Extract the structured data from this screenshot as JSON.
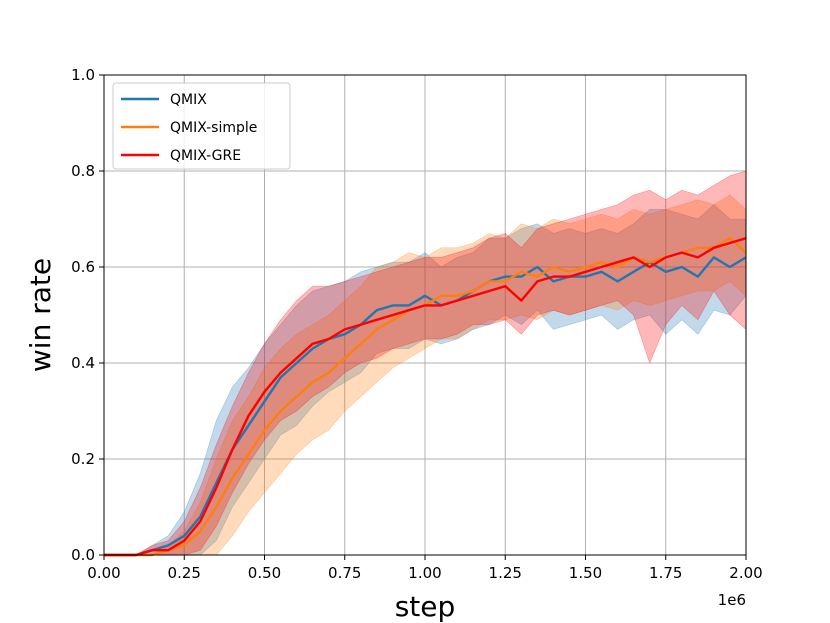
{
  "chart_data": {
    "type": "line",
    "title": "",
    "xlabel": "step",
    "ylabel": "win rate",
    "x_exponent_label": "1e6",
    "xlim": [
      0,
      2.0
    ],
    "ylim": [
      0,
      1.0
    ],
    "x_ticks": [
      0,
      0.25,
      0.5,
      0.75,
      1.0,
      1.25,
      1.5,
      1.75,
      2.0
    ],
    "x_tick_labels": [
      "0.00",
      "0.25",
      "0.50",
      "0.75",
      "1.00",
      "1.25",
      "1.50",
      "1.75",
      "2.00"
    ],
    "y_ticks": [
      0,
      0.2,
      0.4,
      0.6,
      0.8,
      1.0
    ],
    "y_tick_labels": [
      "0.0",
      "0.2",
      "0.4",
      "0.6",
      "0.8",
      "1.0"
    ],
    "grid": true,
    "legend_position": "upper-left",
    "x": [
      0,
      0.05,
      0.1,
      0.15,
      0.2,
      0.25,
      0.3,
      0.35,
      0.4,
      0.45,
      0.5,
      0.55,
      0.6,
      0.65,
      0.7,
      0.75,
      0.8,
      0.85,
      0.9,
      0.95,
      1.0,
      1.05,
      1.1,
      1.15,
      1.2,
      1.25,
      1.3,
      1.35,
      1.4,
      1.45,
      1.5,
      1.55,
      1.6,
      1.65,
      1.7,
      1.75,
      1.8,
      1.85,
      1.9,
      1.95,
      2.0
    ],
    "series": [
      {
        "name": "QMIX",
        "color": "#1f77b4",
        "values": [
          0.0,
          0.0,
          0.0,
          0.01,
          0.02,
          0.04,
          0.08,
          0.15,
          0.22,
          0.27,
          0.32,
          0.37,
          0.4,
          0.43,
          0.45,
          0.46,
          0.48,
          0.51,
          0.52,
          0.52,
          0.54,
          0.52,
          0.53,
          0.55,
          0.57,
          0.58,
          0.58,
          0.6,
          0.57,
          0.58,
          0.58,
          0.59,
          0.57,
          0.59,
          0.61,
          0.59,
          0.6,
          0.58,
          0.62,
          0.6,
          0.62
        ],
        "lower": [
          0.0,
          0.0,
          0.0,
          0.0,
          0.0,
          0.0,
          0.0,
          0.03,
          0.1,
          0.15,
          0.2,
          0.25,
          0.27,
          0.31,
          0.34,
          0.36,
          0.38,
          0.42,
          0.43,
          0.43,
          0.45,
          0.44,
          0.45,
          0.47,
          0.48,
          0.5,
          0.48,
          0.51,
          0.47,
          0.48,
          0.49,
          0.5,
          0.47,
          0.49,
          0.5,
          0.46,
          0.49,
          0.46,
          0.51,
          0.5,
          0.54
        ],
        "upper": [
          0.0,
          0.0,
          0.0,
          0.02,
          0.04,
          0.09,
          0.17,
          0.28,
          0.35,
          0.39,
          0.44,
          0.48,
          0.52,
          0.55,
          0.56,
          0.57,
          0.59,
          0.6,
          0.61,
          0.61,
          0.63,
          0.6,
          0.62,
          0.63,
          0.66,
          0.66,
          0.68,
          0.69,
          0.67,
          0.68,
          0.67,
          0.68,
          0.67,
          0.69,
          0.72,
          0.72,
          0.71,
          0.7,
          0.73,
          0.7,
          0.7
        ]
      },
      {
        "name": "QMIX-simple",
        "color": "#ff7f0e",
        "values": [
          0.0,
          0.0,
          0.0,
          0.0,
          0.01,
          0.02,
          0.05,
          0.1,
          0.16,
          0.21,
          0.26,
          0.3,
          0.33,
          0.36,
          0.38,
          0.41,
          0.44,
          0.47,
          0.49,
          0.51,
          0.52,
          0.54,
          0.54,
          0.55,
          0.57,
          0.57,
          0.59,
          0.58,
          0.6,
          0.59,
          0.6,
          0.61,
          0.6,
          0.62,
          0.61,
          0.62,
          0.63,
          0.64,
          0.64,
          0.66,
          0.63
        ],
        "lower": [
          0.0,
          0.0,
          0.0,
          0.0,
          0.0,
          0.0,
          0.0,
          0.0,
          0.04,
          0.09,
          0.13,
          0.17,
          0.21,
          0.24,
          0.26,
          0.3,
          0.33,
          0.36,
          0.39,
          0.41,
          0.43,
          0.45,
          0.45,
          0.47,
          0.49,
          0.49,
          0.5,
          0.49,
          0.51,
          0.5,
          0.51,
          0.52,
          0.51,
          0.53,
          0.52,
          0.53,
          0.54,
          0.55,
          0.55,
          0.57,
          0.54
        ],
        "upper": [
          0.0,
          0.0,
          0.0,
          0.0,
          0.02,
          0.05,
          0.11,
          0.2,
          0.28,
          0.33,
          0.39,
          0.43,
          0.46,
          0.48,
          0.5,
          0.53,
          0.56,
          0.6,
          0.61,
          0.63,
          0.62,
          0.64,
          0.64,
          0.65,
          0.67,
          0.66,
          0.69,
          0.68,
          0.7,
          0.69,
          0.7,
          0.71,
          0.7,
          0.72,
          0.71,
          0.72,
          0.73,
          0.74,
          0.73,
          0.75,
          0.72
        ]
      },
      {
        "name": "QMIX-GRE",
        "color": "#ff0000",
        "values": [
          0.0,
          0.0,
          0.0,
          0.01,
          0.01,
          0.03,
          0.07,
          0.14,
          0.22,
          0.29,
          0.34,
          0.38,
          0.41,
          0.44,
          0.45,
          0.47,
          0.48,
          0.49,
          0.5,
          0.51,
          0.52,
          0.52,
          0.53,
          0.54,
          0.55,
          0.56,
          0.53,
          0.57,
          0.58,
          0.58,
          0.59,
          0.6,
          0.61,
          0.62,
          0.6,
          0.62,
          0.63,
          0.62,
          0.64,
          0.65,
          0.66
        ],
        "lower": [
          0.0,
          0.0,
          0.0,
          0.0,
          0.0,
          0.0,
          0.01,
          0.06,
          0.13,
          0.19,
          0.24,
          0.28,
          0.3,
          0.33,
          0.35,
          0.38,
          0.4,
          0.41,
          0.43,
          0.44,
          0.45,
          0.45,
          0.46,
          0.48,
          0.48,
          0.49,
          0.46,
          0.5,
          0.51,
          0.5,
          0.51,
          0.52,
          0.53,
          0.5,
          0.4,
          0.48,
          0.52,
          0.49,
          0.55,
          0.5,
          0.47
        ],
        "upper": [
          0.0,
          0.0,
          0.0,
          0.02,
          0.03,
          0.07,
          0.14,
          0.23,
          0.31,
          0.38,
          0.44,
          0.49,
          0.53,
          0.56,
          0.56,
          0.57,
          0.58,
          0.59,
          0.6,
          0.61,
          0.62,
          0.62,
          0.63,
          0.64,
          0.66,
          0.67,
          0.64,
          0.68,
          0.69,
          0.7,
          0.71,
          0.72,
          0.73,
          0.75,
          0.76,
          0.74,
          0.76,
          0.75,
          0.77,
          0.79,
          0.8
        ]
      }
    ]
  }
}
